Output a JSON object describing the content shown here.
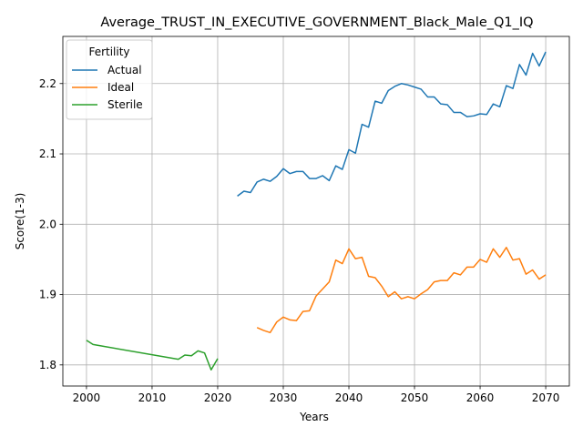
{
  "chart_data": {
    "type": "line",
    "title": "Average_TRUST_IN_EXECUTIVE_GOVERNMENT_Black_Male_Q1_IQ",
    "xlabel": "Years",
    "ylabel": "Score(1-3)",
    "xlim": [
      1996.4,
      2073.6
    ],
    "ylim": [
      1.77,
      2.267
    ],
    "xticks": [
      2000,
      2010,
      2020,
      2030,
      2040,
      2050,
      2060,
      2070
    ],
    "yticks": [
      1.8,
      1.9,
      2.0,
      2.1,
      2.2
    ],
    "grid": true,
    "legend": {
      "title": "Fertility",
      "placement": "top-left"
    },
    "series": [
      {
        "name": "Actual",
        "color": "#1f77b4",
        "x": [
          2023,
          2024,
          2025,
          2026,
          2027,
          2028,
          2029,
          2030,
          2031,
          2032,
          2033,
          2034,
          2035,
          2036,
          2037,
          2038,
          2039,
          2040,
          2041,
          2042,
          2043,
          2044,
          2045,
          2046,
          2047,
          2048,
          2049,
          2050,
          2051,
          2052,
          2053,
          2054,
          2055,
          2056,
          2057,
          2058,
          2059,
          2060,
          2061,
          2062,
          2063,
          2064,
          2065,
          2066,
          2067,
          2068,
          2069,
          2070
        ],
        "y": [
          2.04,
          2.047,
          2.045,
          2.06,
          2.064,
          2.061,
          2.068,
          2.079,
          2.072,
          2.075,
          2.075,
          2.065,
          2.065,
          2.069,
          2.062,
          2.083,
          2.078,
          2.106,
          2.101,
          2.142,
          2.138,
          2.175,
          2.172,
          2.19,
          2.196,
          2.2,
          2.198,
          2.195,
          2.192,
          2.181,
          2.181,
          2.171,
          2.17,
          2.159,
          2.159,
          2.153,
          2.154,
          2.157,
          2.156,
          2.171,
          2.167,
          2.197,
          2.193,
          2.227,
          2.212,
          2.243,
          2.225,
          2.245
        ]
      },
      {
        "name": "Ideal",
        "color": "#ff7f0e",
        "x": [
          2026,
          2027,
          2028,
          2029,
          2030,
          2031,
          2032,
          2033,
          2034,
          2035,
          2036,
          2037,
          2038,
          2039,
          2040,
          2041,
          2042,
          2043,
          2044,
          2045,
          2046,
          2047,
          2048,
          2049,
          2050,
          2051,
          2052,
          2053,
          2054,
          2055,
          2056,
          2057,
          2058,
          2059,
          2060,
          2061,
          2062,
          2063,
          2064,
          2065,
          2066,
          2067,
          2068,
          2069,
          2070
        ],
        "y": [
          1.853,
          1.849,
          1.846,
          1.861,
          1.868,
          1.864,
          1.863,
          1.876,
          1.877,
          1.898,
          1.908,
          1.918,
          1.949,
          1.944,
          1.965,
          1.951,
          1.953,
          1.926,
          1.924,
          1.912,
          1.897,
          1.904,
          1.894,
          1.897,
          1.894,
          1.901,
          1.907,
          1.918,
          1.92,
          1.92,
          1.931,
          1.928,
          1.939,
          1.939,
          1.95,
          1.946,
          1.965,
          1.953,
          1.967,
          1.949,
          1.951,
          1.929,
          1.935,
          1.922,
          1.928
        ]
      },
      {
        "name": "Sterile",
        "color": "#2ca02c",
        "x": [
          2000,
          2001,
          2014,
          2015,
          2016,
          2017,
          2018,
          2019,
          2020
        ],
        "y": [
          1.835,
          1.829,
          1.808,
          1.814,
          1.813,
          1.82,
          1.817,
          1.793,
          1.809
        ]
      }
    ]
  }
}
